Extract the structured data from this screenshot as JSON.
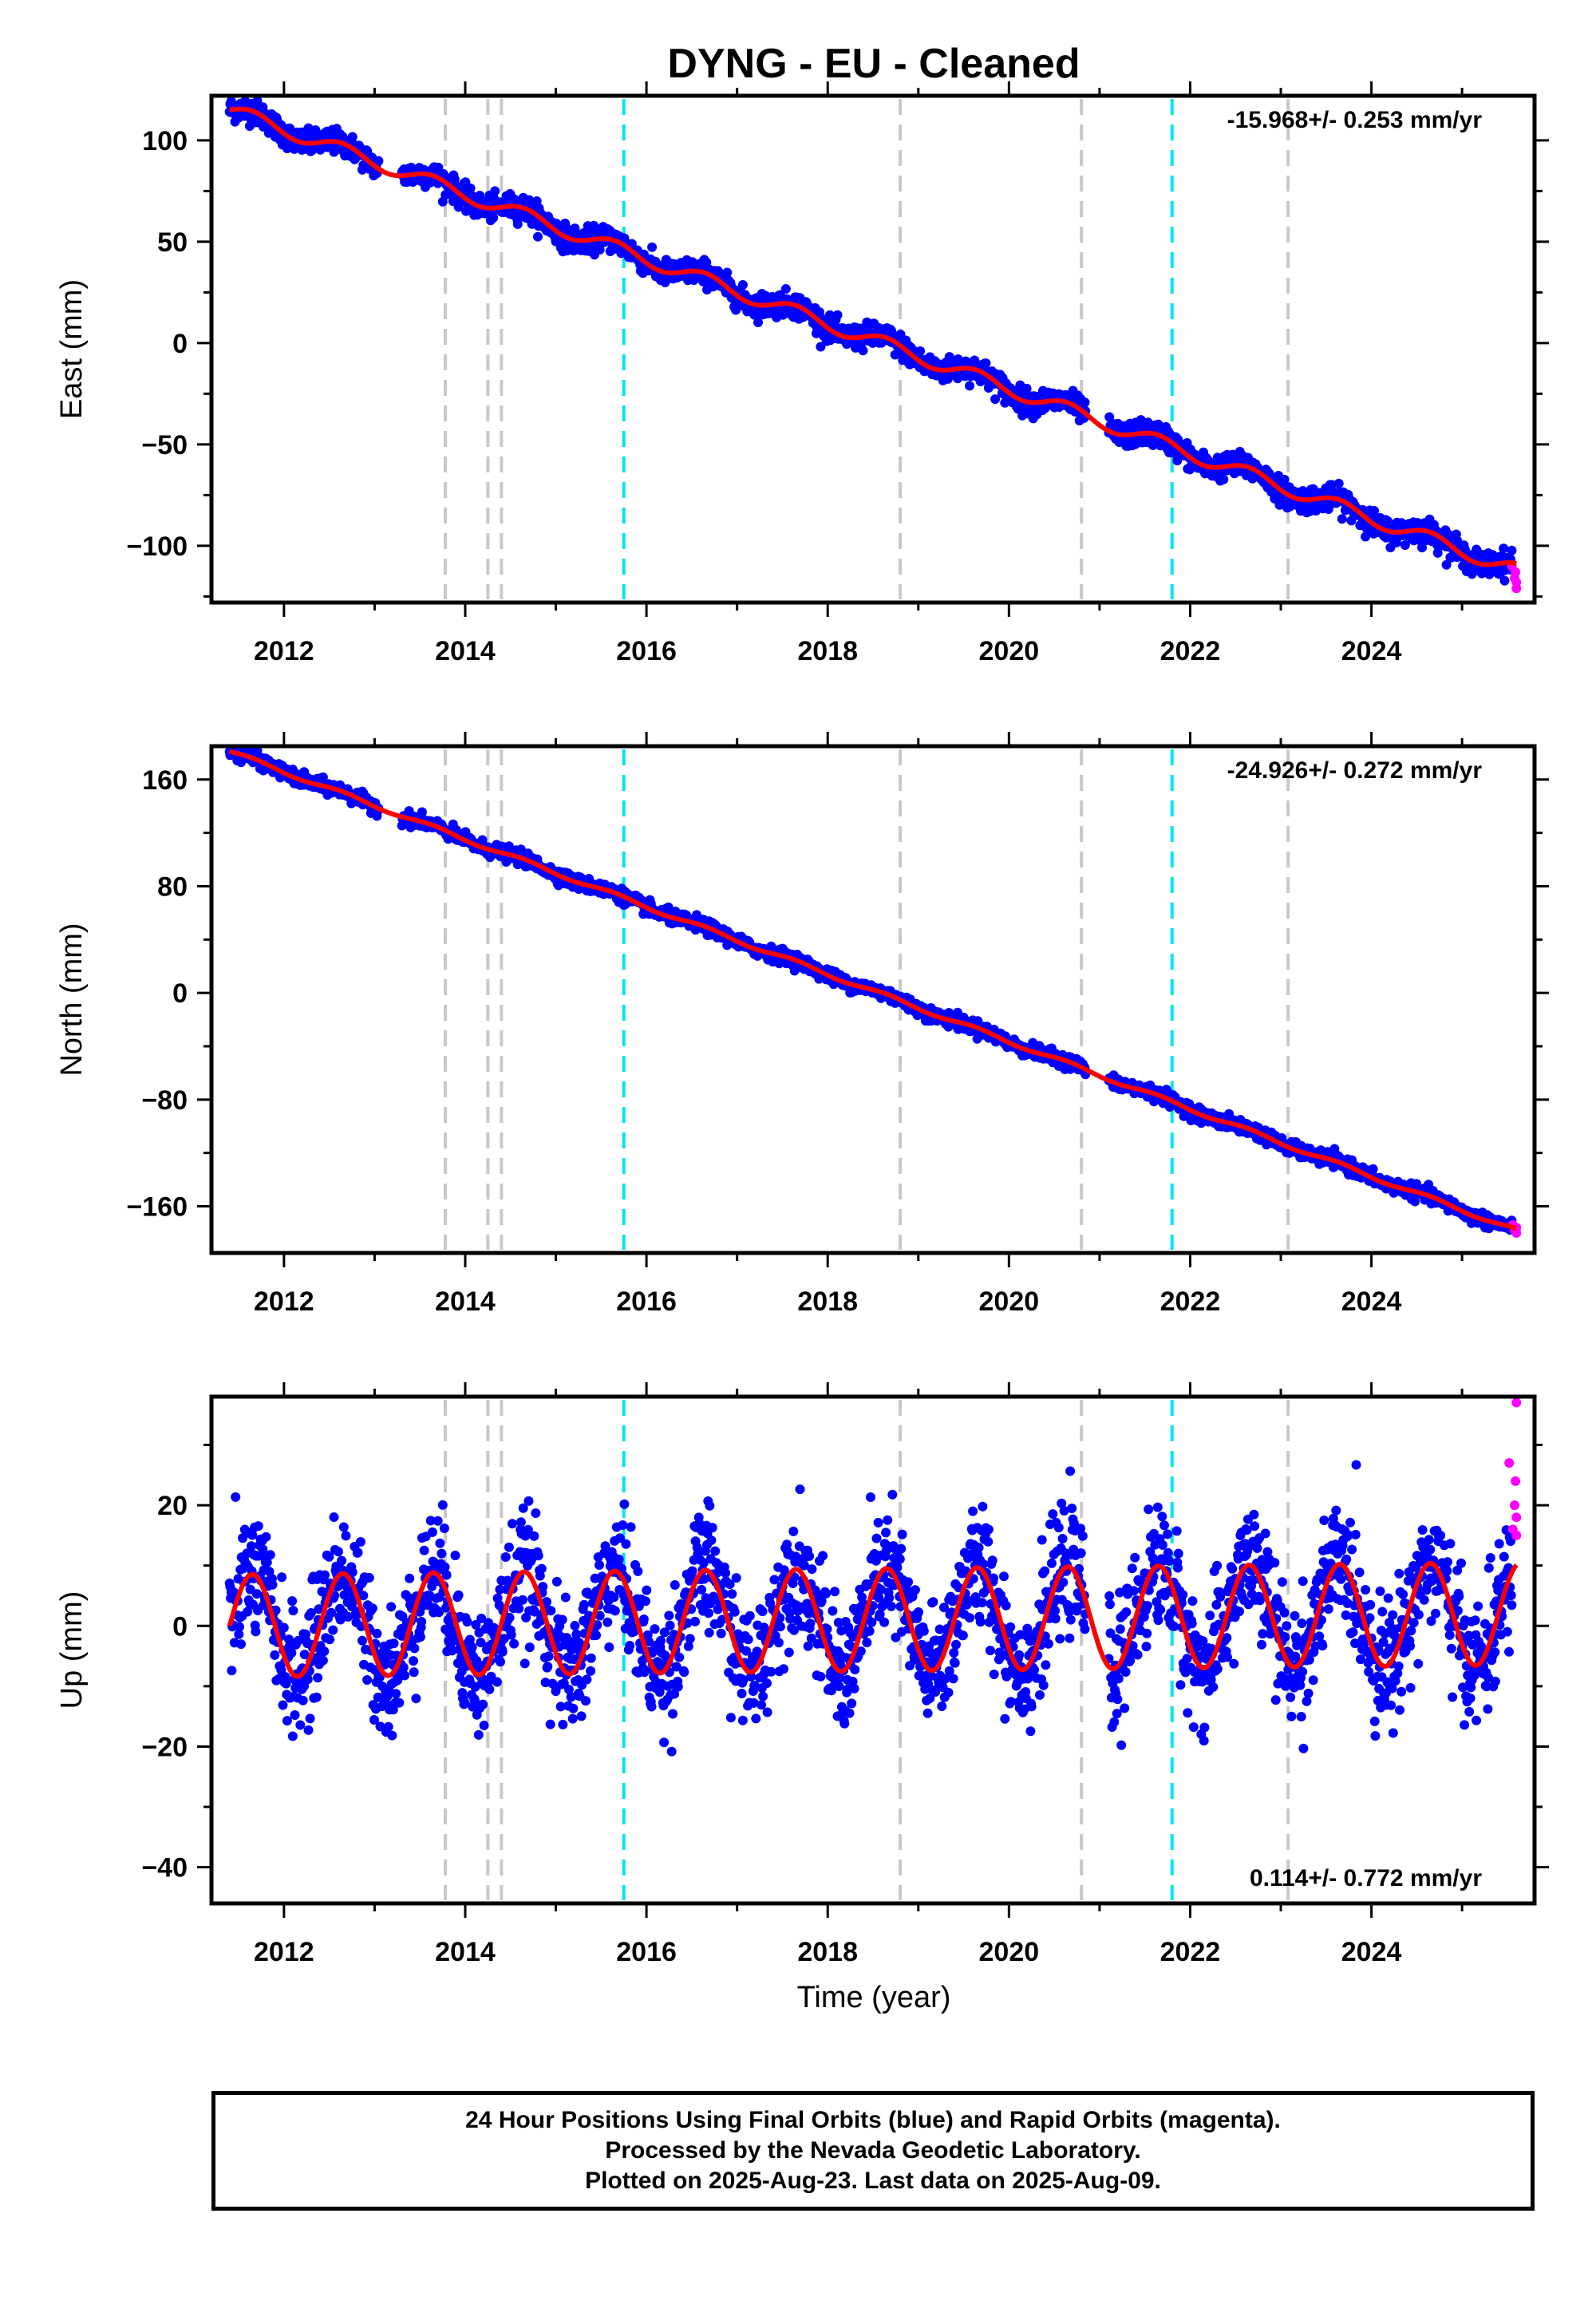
{
  "title": "DYNG  - EU - Cleaned",
  "xlabel": "Time (year)",
  "footer": {
    "line1": "24 Hour Positions Using Final Orbits (blue) and Rapid Orbits (magenta).",
    "line2": "Processed by the Nevada Geodetic Laboratory.",
    "line3": "Plotted on 2025-Aug-23. Last data on 2025-Aug-09."
  },
  "colors": {
    "final": "#0000ff",
    "rapid": "#ff00ff",
    "model": "#ff0000",
    "event_gray": "#c8c8c8",
    "event_cyan": "#00e5ee"
  },
  "chart_data": [
    {
      "type": "scatter",
      "component": "east",
      "ylabel": "East (mm)",
      "rate_label": "-15.968+/- 0.253 mm/yr",
      "xlim": [
        2011.2,
        2025.8
      ],
      "ylim": [
        -128,
        122
      ],
      "xticks": [
        2012,
        2014,
        2016,
        2018,
        2020,
        2022,
        2024
      ],
      "yticks": [
        -100,
        -50,
        0,
        50,
        100
      ],
      "model": {
        "start_year": 2011.4,
        "start_value": 115,
        "end_year": 2025.6,
        "end_value": -112,
        "seasonal_amplitude": 3.5
      },
      "scatter_std": 3.0,
      "rapid_points": [
        [
          2025.55,
          -110
        ],
        [
          2025.58,
          -116
        ],
        [
          2025.59,
          -113
        ],
        [
          2025.6,
          -121
        ],
        [
          2025.6,
          -118
        ]
      ]
    },
    {
      "type": "scatter",
      "component": "north",
      "ylabel": "North (mm)",
      "rate_label": "-24.926+/- 0.272 mm/yr",
      "xlim": [
        2011.2,
        2025.8
      ],
      "ylim": [
        -195,
        185
      ],
      "xticks": [
        2012,
        2014,
        2016,
        2018,
        2020,
        2022,
        2024
      ],
      "yticks": [
        -160,
        -80,
        0,
        80,
        160
      ],
      "model": {
        "start_year": 2011.4,
        "start_value": 181,
        "end_year": 2025.6,
        "end_value": -178,
        "seasonal_amplitude": 1.5
      },
      "scatter_std": 2.5,
      "rapid_points": [
        [
          2025.56,
          -174
        ],
        [
          2025.58,
          -178
        ],
        [
          2025.6,
          -180
        ],
        [
          2025.6,
          -176
        ]
      ]
    },
    {
      "type": "scatter",
      "component": "up",
      "ylabel": "Up (mm)",
      "rate_label": "0.114+/- 0.772 mm/yr",
      "xlim": [
        2011.2,
        2025.8
      ],
      "ylim": [
        -46,
        38
      ],
      "xticks": [
        2012,
        2014,
        2016,
        2018,
        2020,
        2022,
        2024
      ],
      "yticks": [
        -40,
        -20,
        0,
        20
      ],
      "model": {
        "start_year": 2011.4,
        "start_value": 0,
        "end_year": 2025.6,
        "end_value": 2,
        "seasonal_amplitude": 8.5
      },
      "scatter_std": 5.0,
      "rapid_points": [
        [
          2025.52,
          27
        ],
        [
          2025.56,
          16
        ],
        [
          2025.58,
          20
        ],
        [
          2025.59,
          24
        ],
        [
          2025.6,
          37
        ],
        [
          2025.6,
          18
        ],
        [
          2025.6,
          15
        ]
      ]
    }
  ],
  "events": {
    "gray": [
      2013.78,
      2014.25,
      2014.4,
      2018.8,
      2020.8,
      2023.08
    ],
    "cyan": [
      2015.75,
      2021.8
    ]
  }
}
